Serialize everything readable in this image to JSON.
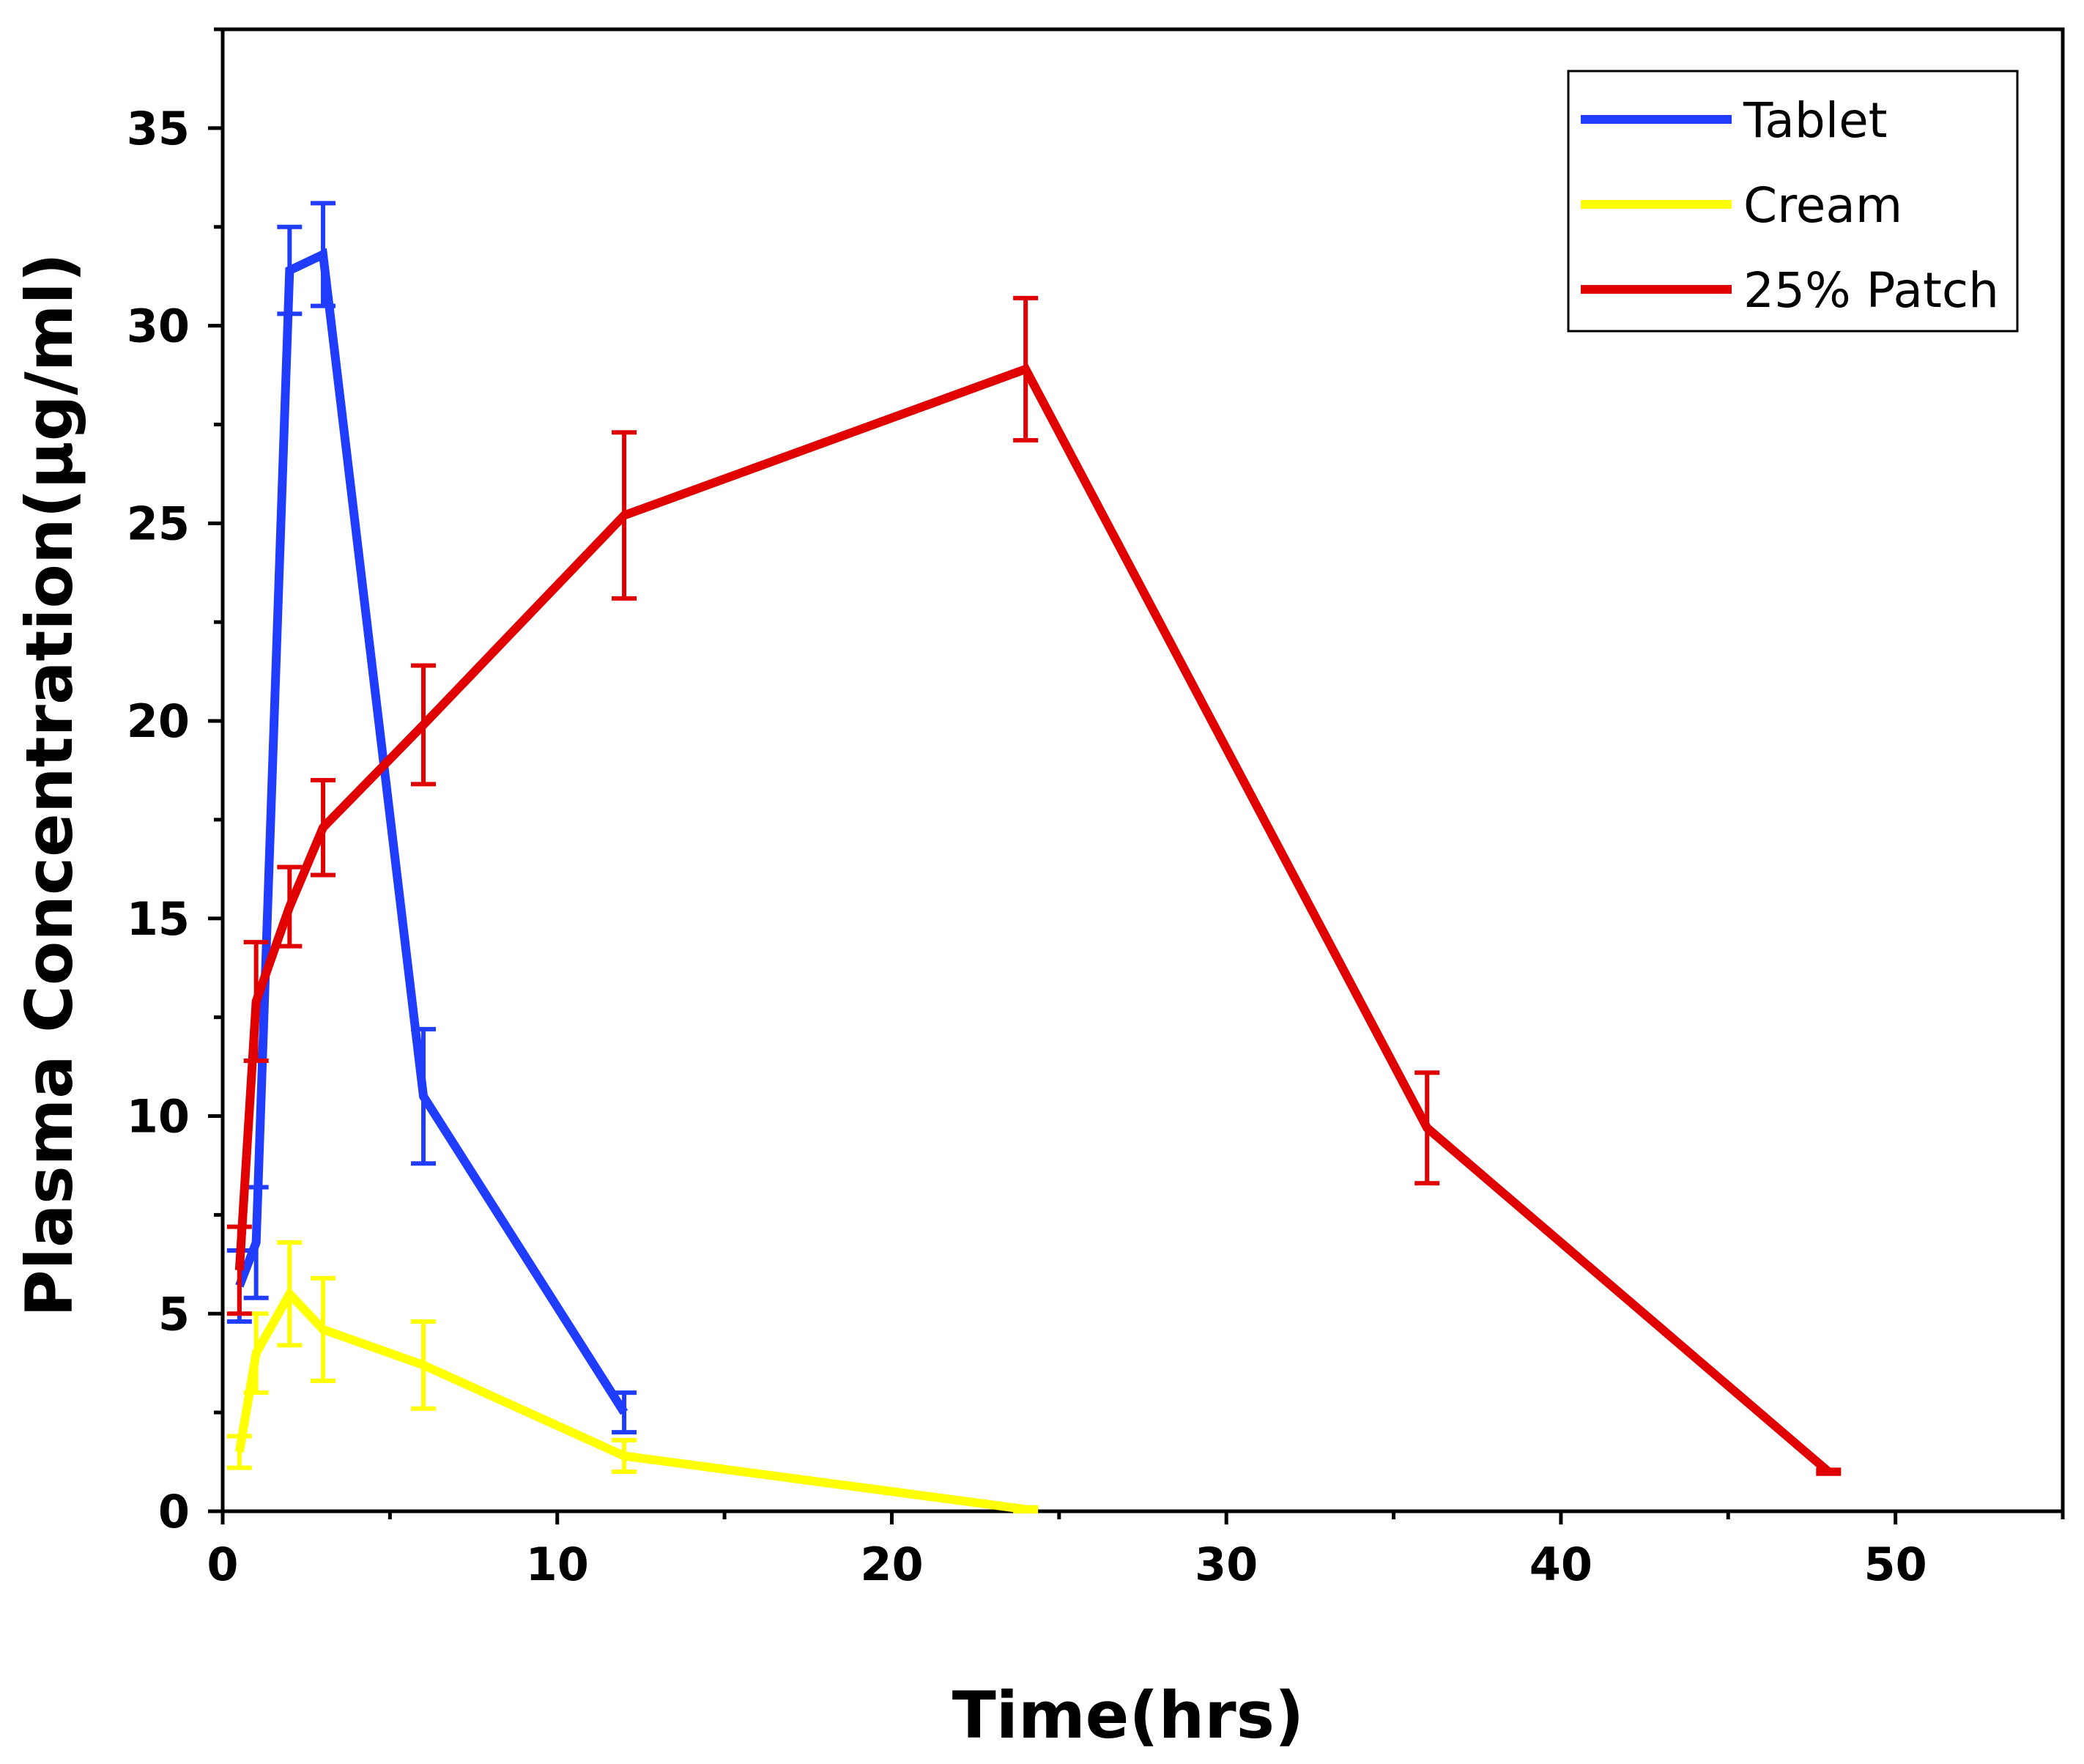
{
  "chart_data": {
    "type": "line",
    "title": "",
    "xlabel": "Time(hrs)",
    "ylabel": "Plasma Concentration(µg/ml)",
    "xlim": [
      0,
      55
    ],
    "ylim": [
      0,
      37.5
    ],
    "x_ticks": [
      0,
      10,
      20,
      30,
      40,
      50
    ],
    "x_minor_ticks": [
      5,
      15,
      25,
      35,
      45,
      55
    ],
    "y_ticks": [
      0,
      5,
      10,
      15,
      20,
      25,
      30,
      35
    ],
    "y_minor_ticks": [
      2.5,
      7.5,
      12.5,
      17.5,
      22.5,
      27.5,
      32.5,
      37.5
    ],
    "grid": false,
    "legend_position": "top-right",
    "series": [
      {
        "name": "Tablet",
        "color": "#1f3cff",
        "x": [
          0.5,
          1,
          2,
          3,
          6,
          12
        ],
        "y": [
          5.7,
          6.8,
          31.4,
          31.8,
          10.5,
          2.5
        ],
        "error": [
          0.9,
          1.4,
          1.1,
          1.3,
          1.7,
          0.5
        ]
      },
      {
        "name": "Cream",
        "color": "#ffff00",
        "x": [
          0.5,
          1,
          2,
          3,
          6,
          12,
          24
        ],
        "y": [
          1.5,
          4.0,
          5.5,
          4.6,
          3.7,
          1.4,
          0.05
        ],
        "error": [
          0.4,
          1.0,
          1.3,
          1.3,
          1.1,
          0.4,
          0.05
        ]
      },
      {
        "name": "25% Patch",
        "color": "#e00000",
        "x": [
          0.5,
          1,
          2,
          3,
          6,
          12,
          24,
          36,
          48
        ],
        "y": [
          6.1,
          12.9,
          15.3,
          17.3,
          19.9,
          25.2,
          28.9,
          9.7,
          1.0
        ],
        "error": [
          1.1,
          1.5,
          1.0,
          1.2,
          1.5,
          2.1,
          1.8,
          1.4,
          0.05
        ]
      }
    ]
  }
}
